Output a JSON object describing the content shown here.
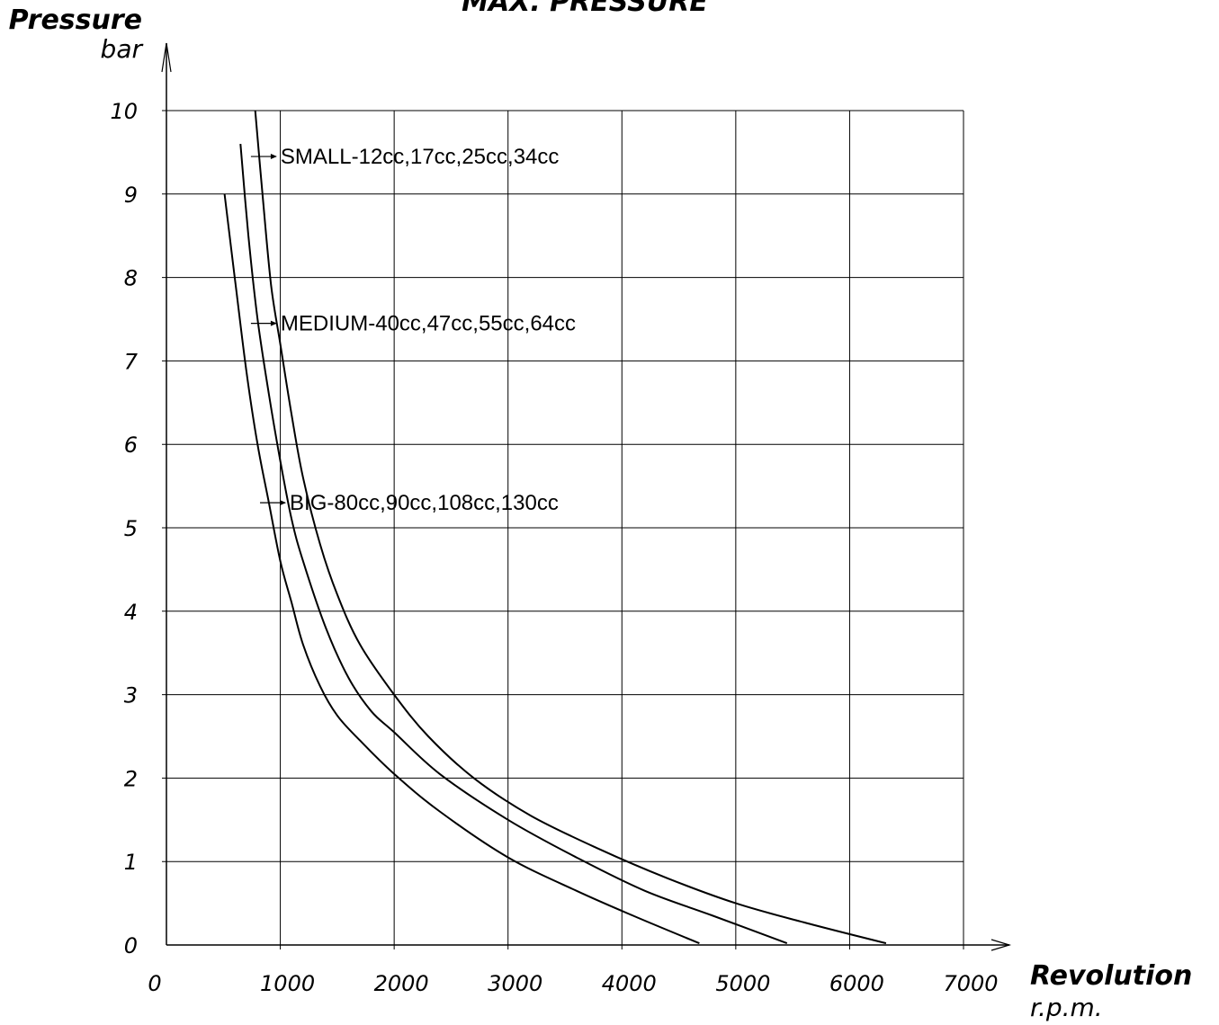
{
  "chart_data": {
    "type": "line",
    "title": "MAX. PRESSURE",
    "ylabel": "Pressure",
    "yunit": "bar",
    "xlabel": "Revolution",
    "xunit": "r.p.m.",
    "xlim": [
      0,
      7000
    ],
    "ylim": [
      0,
      10
    ],
    "xticks": [
      "0",
      "1000",
      "2000",
      "3000",
      "4000",
      "5000",
      "6000",
      "7000"
    ],
    "yticks": [
      "0",
      "1",
      "2",
      "3",
      "4",
      "5",
      "6",
      "7",
      "8",
      "9",
      "10"
    ],
    "grid": true,
    "series": [
      {
        "name": "SMALL-12cc,17cc,25cc,34cc",
        "label_anchor": [
          900,
          9.45
        ],
        "points": [
          [
            780,
            10
          ],
          [
            850,
            8.9
          ],
          [
            920,
            7.9
          ],
          [
            1000,
            7.2
          ],
          [
            1100,
            6.35
          ],
          [
            1200,
            5.6
          ],
          [
            1350,
            4.8
          ],
          [
            1500,
            4.2
          ],
          [
            1700,
            3.6
          ],
          [
            2000,
            3.0
          ],
          [
            2300,
            2.5
          ],
          [
            2700,
            2.0
          ],
          [
            3200,
            1.55
          ],
          [
            3800,
            1.15
          ],
          [
            4400,
            0.8
          ],
          [
            5000,
            0.5
          ],
          [
            5600,
            0.27
          ],
          [
            6320,
            0.02
          ]
        ]
      },
      {
        "name": "MEDIUM-40cc,47cc,55cc,64cc",
        "label_anchor": [
          900,
          7.45
        ],
        "points": [
          [
            650,
            9.6
          ],
          [
            720,
            8.5
          ],
          [
            800,
            7.5
          ],
          [
            900,
            6.6
          ],
          [
            1000,
            5.8
          ],
          [
            1100,
            5.1
          ],
          [
            1200,
            4.6
          ],
          [
            1400,
            3.8
          ],
          [
            1600,
            3.2
          ],
          [
            1800,
            2.8
          ],
          [
            2000,
            2.55
          ],
          [
            2400,
            2.05
          ],
          [
            3000,
            1.5
          ],
          [
            3600,
            1.05
          ],
          [
            4200,
            0.65
          ],
          [
            4800,
            0.35
          ],
          [
            5450,
            0.02
          ]
        ]
      },
      {
        "name": "BIG-80cc,90cc,108cc,130cc",
        "label_anchor": [
          980,
          5.3
        ],
        "points": [
          [
            510,
            9.0
          ],
          [
            600,
            8.0
          ],
          [
            700,
            6.9
          ],
          [
            800,
            6.0
          ],
          [
            900,
            5.3
          ],
          [
            1000,
            4.6
          ],
          [
            1100,
            4.1
          ],
          [
            1200,
            3.6
          ],
          [
            1350,
            3.1
          ],
          [
            1500,
            2.75
          ],
          [
            1700,
            2.45
          ],
          [
            2000,
            2.05
          ],
          [
            2400,
            1.6
          ],
          [
            3000,
            1.05
          ],
          [
            3600,
            0.65
          ],
          [
            4100,
            0.35
          ],
          [
            4680,
            0.02
          ]
        ]
      }
    ]
  }
}
